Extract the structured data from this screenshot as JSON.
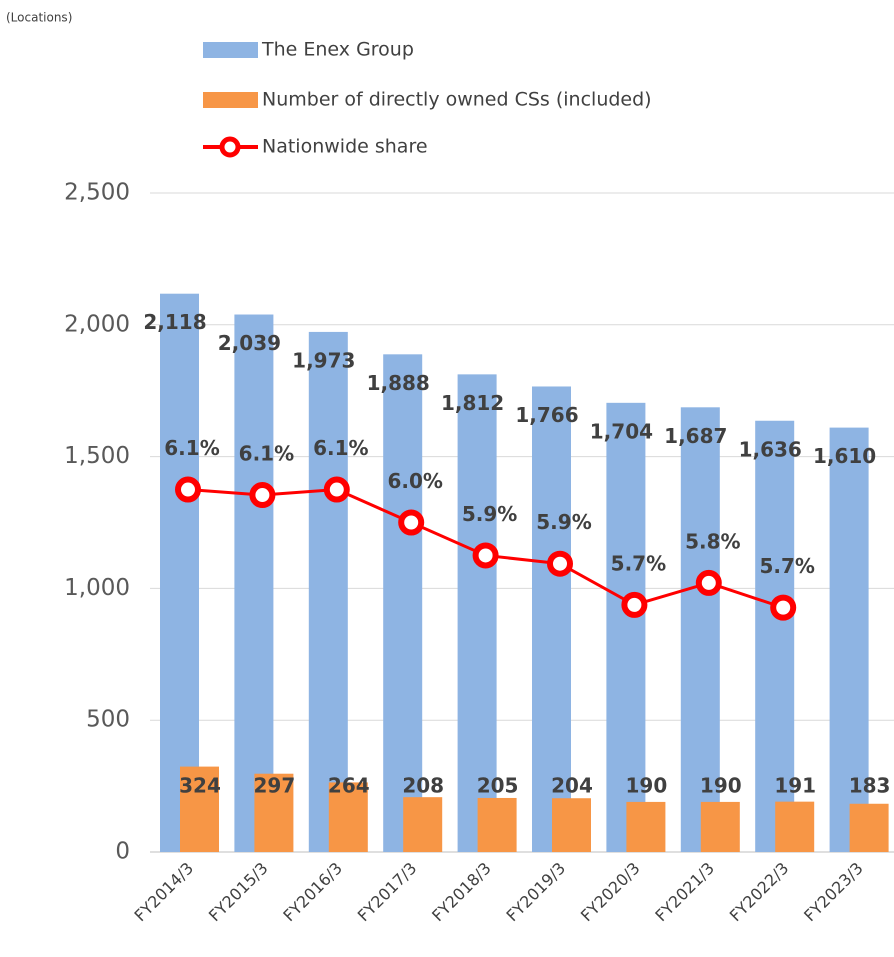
{
  "chart_data": {
    "type": "bar_line",
    "annotation": "(Locations)",
    "categories": [
      "FY2014/3",
      "FY2015/3",
      "FY2016/3",
      "FY2017/3",
      "FY2018/3",
      "FY2019/3",
      "FY2020/3",
      "FY2021/3",
      "FY2022/3",
      "FY2023/3"
    ],
    "series": [
      {
        "name": "The Enex Group",
        "color": "#8eb4e3",
        "values": [
          2118,
          2039,
          1973,
          1888,
          1812,
          1766,
          1704,
          1687,
          1636,
          1610
        ],
        "value_labels": [
          "2,118",
          "2,039",
          "1,973",
          "1,888",
          "1,812",
          "1,766",
          "1,704",
          "1,687",
          "1,636",
          "1,610"
        ]
      },
      {
        "name": "Number of directly owned CSs (included)",
        "color": "#f79646",
        "values": [
          324,
          297,
          264,
          208,
          205,
          204,
          190,
          190,
          191,
          183
        ]
      },
      {
        "name": "Nationwide share",
        "color": "#ff0000",
        "axis": "y2",
        "values": [
          6.12,
          6.1,
          6.12,
          6.0,
          5.88,
          5.85,
          5.7,
          5.78,
          5.69,
          null
        ],
        "value_labels": [
          "6.1%",
          "6.1%",
          "6.1%",
          "6.0%",
          "5.9%",
          "5.9%",
          "5.7%",
          "5.8%",
          "5.7%",
          null
        ]
      }
    ],
    "ylim": [
      0,
      2500
    ],
    "yticks": [
      0,
      {
        "value": 500,
        "label": "500"
      },
      {
        "value": 1000,
        "label": "1,000"
      },
      {
        "value": 1500,
        "label": "1,500"
      },
      {
        "value": 2000,
        "label": "2,000"
      },
      {
        "value": 2500,
        "label": "2,500"
      }
    ],
    "y2lim": [
      4.8,
      7.2
    ],
    "grid": true
  }
}
